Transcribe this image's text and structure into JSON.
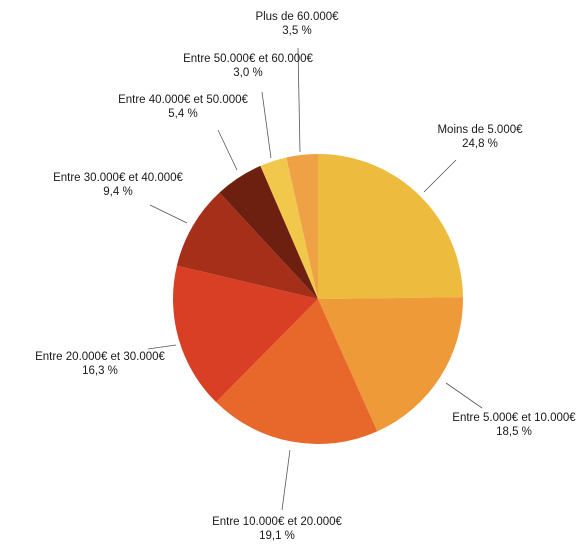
{
  "chart_data": {
    "type": "pie",
    "title": "",
    "start": "12 o'clock",
    "direction": "clockwise",
    "slices": [
      {
        "label": "Moins de 5.000€",
        "value": 24.8,
        "value_label": "24,8 %",
        "color": "#EDBB3E"
      },
      {
        "label": "Entre 5.000€ et 10.000€",
        "value": 18.5,
        "value_label": "18,5 %",
        "color": "#EE9A38"
      },
      {
        "label": "Entre 10.000€ et 20.000€",
        "value": 19.1,
        "value_label": "19,1 %",
        "color": "#E8682C"
      },
      {
        "label": "Entre 20.000€ et 30.000€",
        "value": 16.3,
        "value_label": "16,3 %",
        "color": "#D83F24"
      },
      {
        "label": "Entre 30.000€ et 40.000€",
        "value": 9.4,
        "value_label": "9,4 %",
        "color": "#A52F18"
      },
      {
        "label": "Entre 40.000€ et 50.000€",
        "value": 5.4,
        "value_label": "5,4 %",
        "color": "#6E2010"
      },
      {
        "label": "Entre 50.000€ et 60.000€",
        "value": 3.0,
        "value_label": "3,0 %",
        "color": "#F1C74C"
      },
      {
        "label": "Plus de 60.000€",
        "value": 3.5,
        "value_label": "3,5 %",
        "color": "#EEA145"
      }
    ]
  }
}
